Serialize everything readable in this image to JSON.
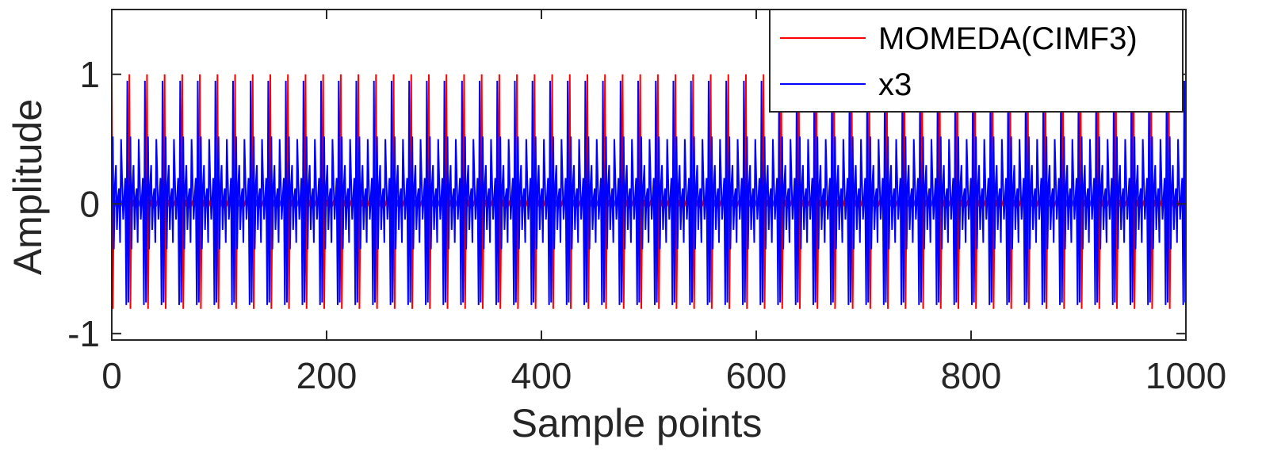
{
  "chart_data": {
    "type": "line",
    "title": "",
    "xlabel": "Sample points",
    "ylabel": "Amplitude",
    "xlim": [
      0,
      1000
    ],
    "ylim": [
      -1.05,
      1.5
    ],
    "xticks": [
      0,
      200,
      400,
      600,
      800,
      1000
    ],
    "xtick_labels": [
      "0",
      "200",
      "400",
      "600",
      "800",
      "1000"
    ],
    "yticks": [
      -1,
      0,
      1
    ],
    "ytick_labels": [
      "-1",
      "0",
      "1"
    ],
    "grid": false,
    "legend_position": "top-right",
    "period_samples": 16.4,
    "series": [
      {
        "name": "MOMEDA(CIMF3)",
        "color": "#ff0000",
        "pattern_values": [
          1.0,
          -0.81,
          0.05,
          -0.02,
          0.03,
          0.0,
          -0.02,
          0.02,
          0.0,
          -0.01,
          0.02,
          0.0,
          0.01,
          -0.01,
          0.0,
          0.02,
          0.0
        ],
        "peak_max": 1.0,
        "trough_min": -0.82
      },
      {
        "name": "x3",
        "color": "#0000ff",
        "pattern_values": [
          0.95,
          -0.76,
          0.1,
          0.52,
          -0.35,
          0.15,
          0.3,
          -0.2,
          0.05,
          0.12,
          -0.3,
          0.5,
          0.18,
          -0.12,
          0.05,
          0.2,
          -0.78
        ],
        "peak_max": 0.96,
        "trough_min": -0.78
      }
    ]
  }
}
